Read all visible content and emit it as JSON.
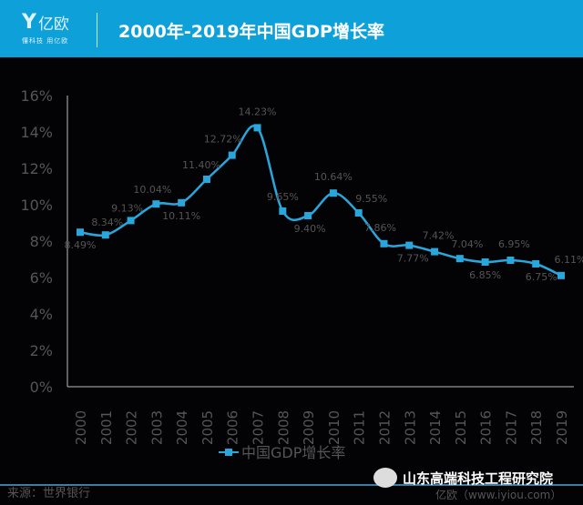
{
  "header": {
    "logo_text": "亿欧",
    "logo_slogan": "懂科技 用亿欧",
    "title": "2000年-2019年中国GDP增长率",
    "background": "#0ea0d8"
  },
  "chart_data": {
    "type": "line",
    "title": "2000年-2019年中国GDP增长率",
    "categories": [
      "2000",
      "2001",
      "2002",
      "2003",
      "2004",
      "2005",
      "2006",
      "2007",
      "2008",
      "2009",
      "2010",
      "2011",
      "2012",
      "2013",
      "2014",
      "2015",
      "2016",
      "2017",
      "2018",
      "2019"
    ],
    "series": [
      {
        "name": "中国GDP增长率",
        "values": [
          8.49,
          8.34,
          9.13,
          10.04,
          10.11,
          11.4,
          12.72,
          14.23,
          9.65,
          9.4,
          10.64,
          9.55,
          7.86,
          7.77,
          7.42,
          7.04,
          6.85,
          6.95,
          6.75,
          6.11
        ],
        "color": "#29a7dc"
      }
    ],
    "data_labels": [
      "8.49%",
      "8.34%",
      "9.13%",
      "10.04%",
      "10.11%",
      "11.40%",
      "12.72%",
      "14.23%",
      "9.65%",
      "9.40%",
      "10.64%",
      "9.55%",
      "7.86%",
      "7.77%",
      "7.42%",
      "7.04%",
      "6.85%",
      "6.95%",
      "6.75%",
      "6.11%"
    ],
    "yticks": [
      "0%",
      "2%",
      "4%",
      "6%",
      "8%",
      "10%",
      "12%",
      "14%",
      "16%"
    ],
    "ylim": [
      0,
      16
    ],
    "grid": false,
    "legend": "bottom"
  },
  "footer": {
    "source": "来源：世界银行",
    "watermark": "山东高端科技工程研究院",
    "credit": "亿欧（www.iyiou.com）"
  }
}
